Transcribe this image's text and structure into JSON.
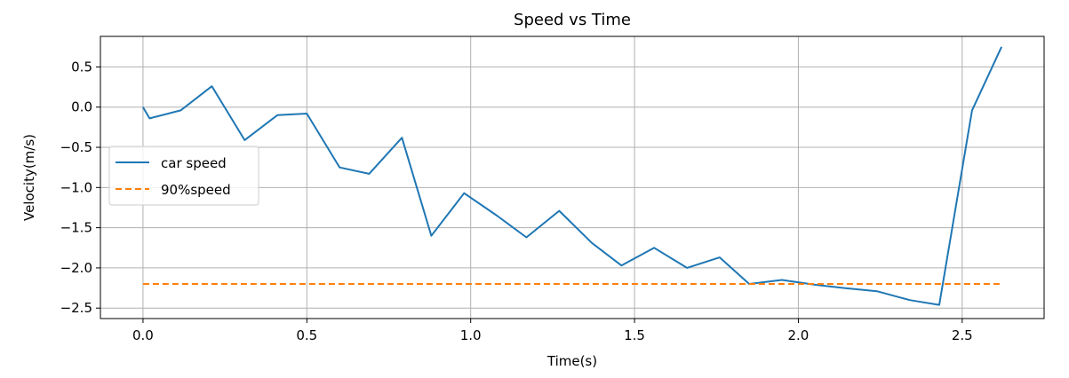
{
  "chart_data": {
    "type": "line",
    "title": "Speed vs Time",
    "xlabel": "Time(s)",
    "ylabel": "Velocity(m/s)",
    "xlim": [
      -0.13,
      2.75
    ],
    "ylim": [
      -2.63,
      0.88
    ],
    "xticks": [
      0.0,
      0.5,
      1.0,
      1.5,
      2.0,
      2.5
    ],
    "xtick_labels": [
      "0.0",
      "0.5",
      "1.0",
      "1.5",
      "2.0",
      "2.5"
    ],
    "yticks": [
      0.5,
      0.0,
      -0.5,
      -1.0,
      -1.5,
      -2.0,
      -2.5
    ],
    "ytick_labels": [
      "0.5",
      "0.0",
      "−0.5",
      "−1.0",
      "−1.5",
      "−2.0",
      "−2.5"
    ],
    "grid": true,
    "legend_position": "center-left",
    "series": [
      {
        "name": "car speed",
        "color": "#1f77b4",
        "style": "solid",
        "x": [
          0.0,
          0.02,
          0.115,
          0.21,
          0.31,
          0.41,
          0.5,
          0.6,
          0.69,
          0.79,
          0.88,
          0.98,
          1.08,
          1.17,
          1.27,
          1.37,
          1.46,
          1.56,
          1.66,
          1.76,
          1.85,
          1.95,
          2.05,
          2.14,
          2.24,
          2.34,
          2.43,
          2.53,
          2.62
        ],
        "y": [
          0.0,
          -0.14,
          -0.04,
          0.26,
          -0.41,
          -0.1,
          -0.08,
          -0.75,
          -0.83,
          -0.38,
          -1.6,
          -1.07,
          -1.35,
          -1.62,
          -1.29,
          -1.69,
          -1.97,
          -1.75,
          -2.0,
          -1.87,
          -2.2,
          -2.15,
          -2.21,
          -2.25,
          -2.29,
          -2.4,
          -2.46,
          -0.04,
          0.75
        ]
      },
      {
        "name": "90%speed",
        "color": "#ff7f0e",
        "style": "dashed",
        "x": [
          0.0,
          2.62
        ],
        "y": [
          -2.2,
          -2.2
        ]
      }
    ]
  }
}
